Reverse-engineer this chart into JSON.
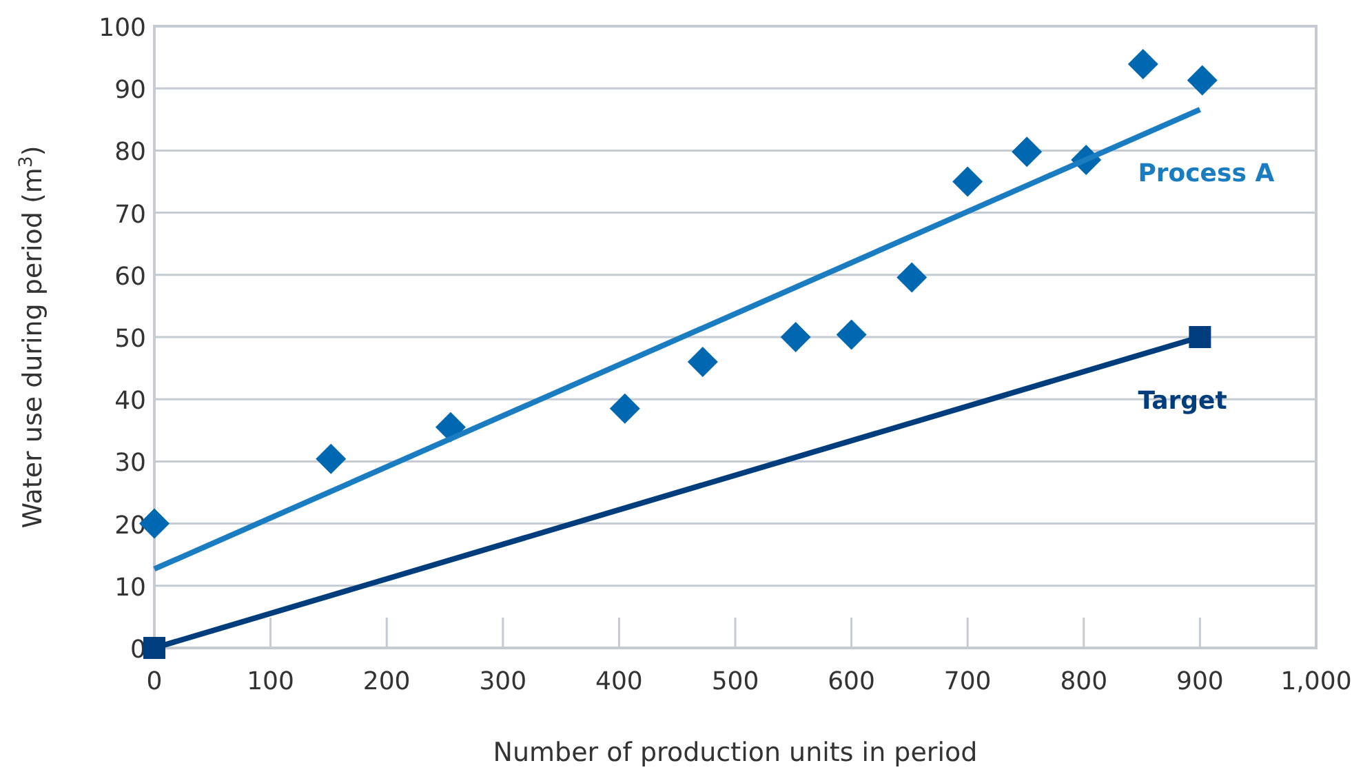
{
  "chart_data": {
    "type": "scatter",
    "xlabel": "Number of production units in period",
    "ylabel": "Water use during period (m$^{3}$)",
    "xlim": [
      0,
      1000
    ],
    "ylim": [
      0,
      100
    ],
    "xticks": [
      0,
      100,
      200,
      300,
      400,
      500,
      600,
      700,
      800,
      900,
      {
        "value": 1000,
        "label": "1,000"
      }
    ],
    "yticks": [
      0,
      10,
      20,
      30,
      40,
      50,
      60,
      70,
      80,
      90,
      100
    ],
    "grid": "y",
    "series": [
      {
        "color": "#0068b0",
        "marker": "diamond",
        "x": [
          0,
          152,
          255,
          405,
          472,
          552,
          600,
          652,
          700,
          751,
          802,
          851,
          902
        ],
        "values": [
          20,
          30.4,
          35.5,
          38.5,
          46,
          50,
          50.4,
          59.6,
          75,
          79.8,
          78.5,
          93.9,
          91.3
        ]
      },
      {
        "type": "line",
        "name": "Process A",
        "color": "#1a7cc1",
        "marker": "none",
        "x": [
          0,
          900
        ],
        "values": [
          12.7,
          86.6
        ]
      },
      {
        "type": "line",
        "name": "Target",
        "color": "#003d7c",
        "marker": "square",
        "x": [
          0,
          900
        ],
        "values": [
          0,
          50
        ]
      }
    ]
  }
}
